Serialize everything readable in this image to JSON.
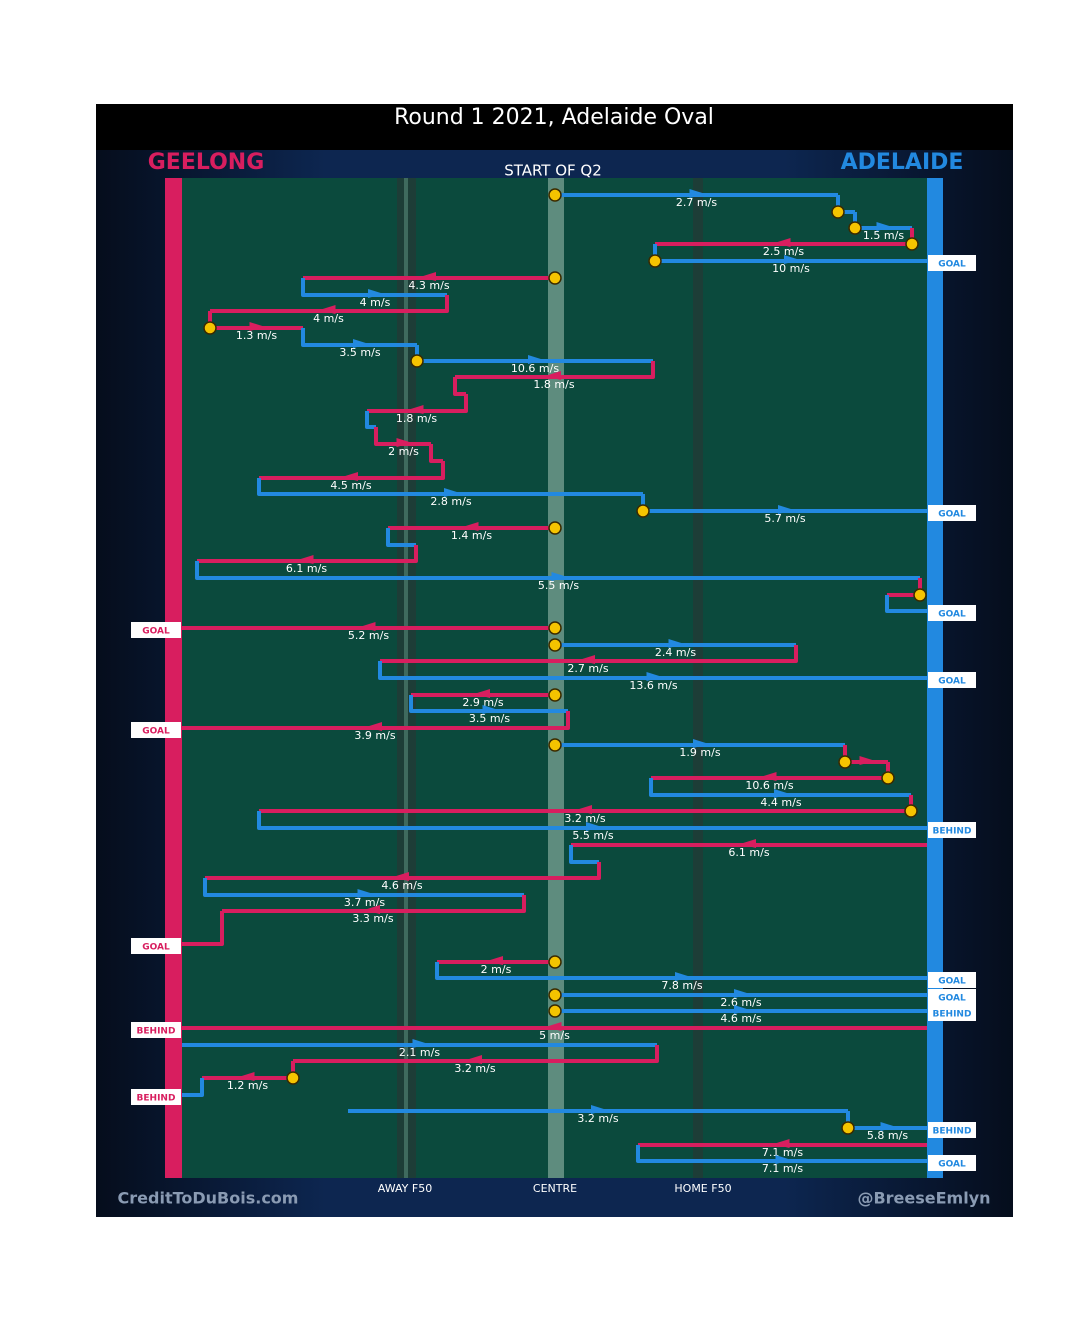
{
  "header": {
    "title": "Round 1 2021, Adelaide Oval",
    "subtitle": "START OF Q2",
    "teams": [
      "GEELONG",
      "ADELAIDE"
    ]
  },
  "speeds": [
    "2.7 m/s",
    "1.5 m/s",
    "2.5 m/s",
    "10 m/s",
    "4.3 m/s",
    "4 m/s",
    "4 m/s",
    "1.3 m/s",
    "3.5 m/s",
    "10.6 m/s",
    "1.8 m/s",
    "1.8 m/s",
    "2 m/s",
    "4.5 m/s",
    "2.8 m/s",
    "5.7 m/s",
    "1.4 m/s",
    "6.1 m/s",
    "5.5 m/s",
    "5.2 m/s",
    "2.4 m/s",
    "2.7 m/s",
    "13.6 m/s",
    "2.9 m/s",
    "3.5 m/s",
    "3.9 m/s",
    "1.9 m/s",
    "10.6 m/s",
    "4.4 m/s",
    "3.2 m/s",
    "5.5 m/s",
    "6.1 m/s",
    "4.6 m/s",
    "3.7 m/s",
    "3.3 m/s",
    "2 m/s",
    "7.8 m/s",
    "2.6 m/s",
    "4.6 m/s",
    "5 m/s",
    "2.1 m/s",
    "3.2 m/s",
    "1.2 m/s",
    "3.2 m/s",
    "5.8 m/s",
    "7.1 m/s",
    "7.1 m/s"
  ],
  "outcomes": [
    "GOAL",
    "GOAL",
    "GOAL",
    "GOAL",
    "GOAL",
    "GOAL",
    "BEHIND",
    "GOAL",
    "GOAL",
    "GOAL",
    "BEHIND",
    "BEHIND",
    "BEHIND",
    "BEHIND",
    "GOAL"
  ],
  "zones": [
    "AWAY F50",
    "CENTRE",
    "HOME F50"
  ],
  "credits": [
    "CreditToDuBois.com",
    "@BreeseEmlyn"
  ]
}
